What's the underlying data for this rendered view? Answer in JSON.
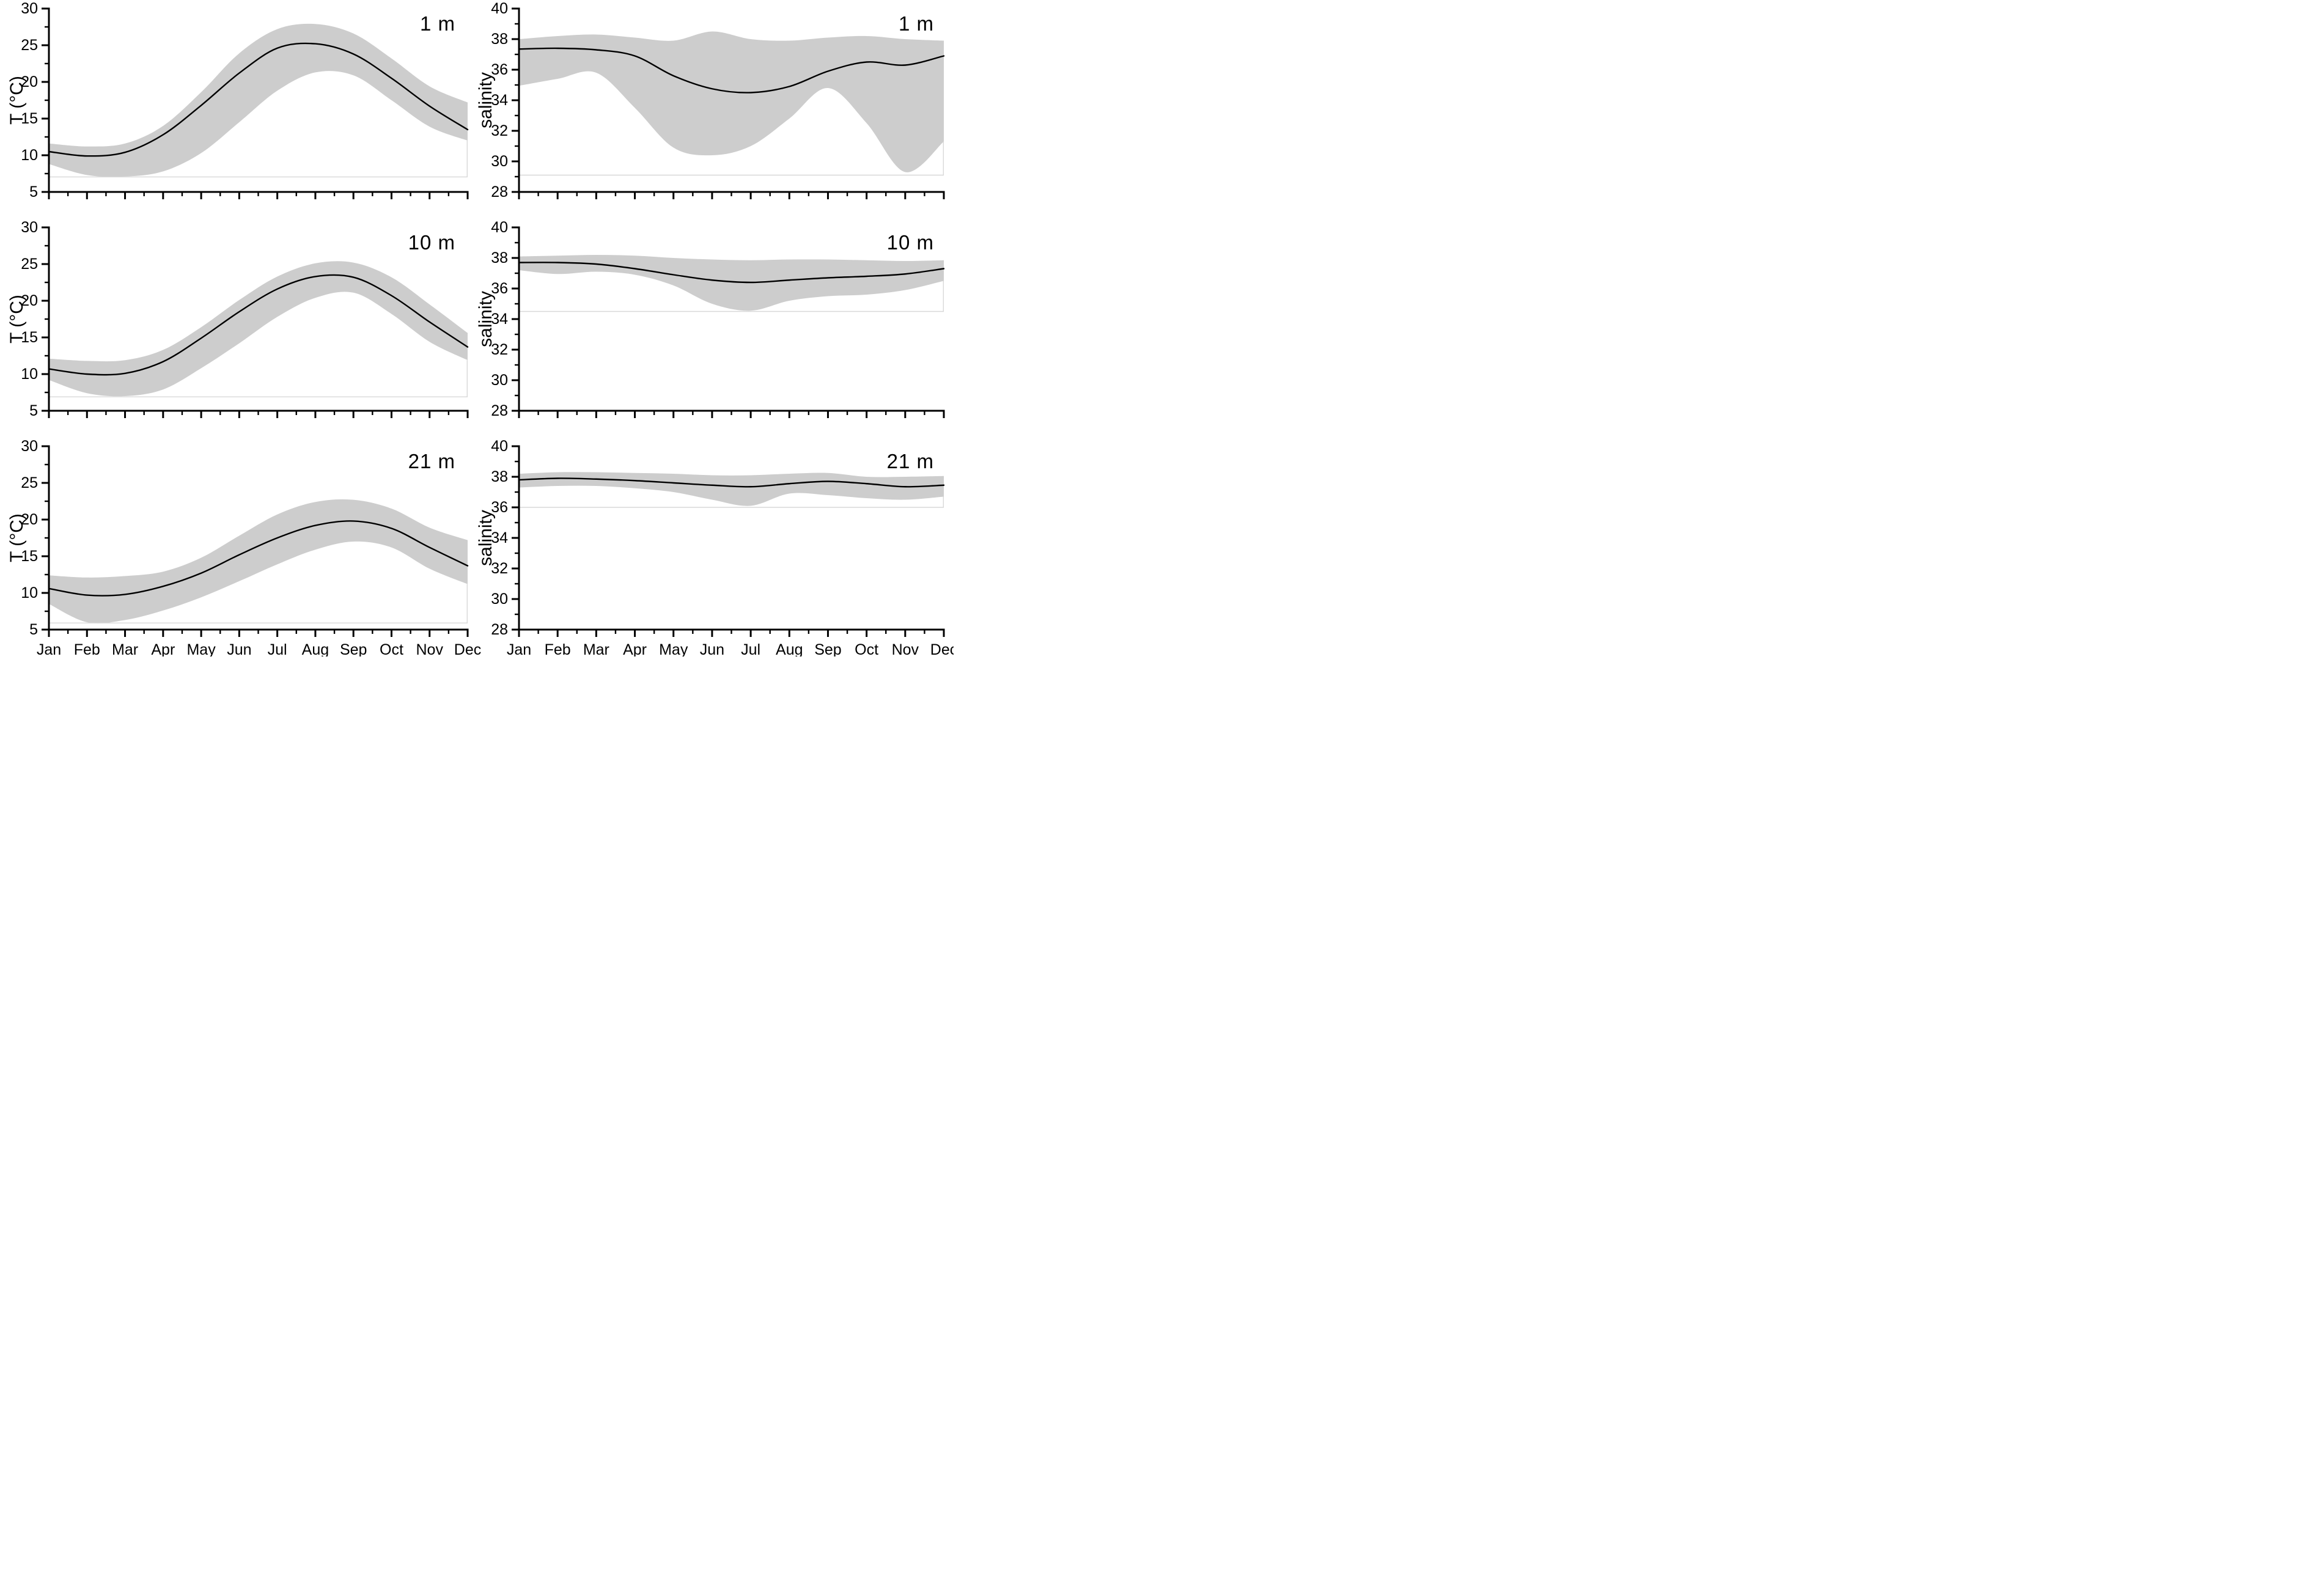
{
  "figure": {
    "background_color": "#ffffff",
    "band_color": "#cdcdcd",
    "mean_line_color": "#000000",
    "baseline_color": "#d8d8d8",
    "axis_color": "#000000",
    "months": [
      "Jan",
      "Feb",
      "Mar",
      "Apr",
      "May",
      "Jun",
      "Jul",
      "Aug",
      "Sep",
      "Oct",
      "Nov",
      "Dec"
    ]
  },
  "chart_data": [
    {
      "type": "area",
      "id": "temperature-1m",
      "annotation": "1 m",
      "ylabel": "T (°C)",
      "xlabel": "",
      "ylim": [
        5,
        30
      ],
      "yticks": [
        5,
        10,
        15,
        20,
        25,
        30
      ],
      "x_categories": [
        "Jan",
        "Feb",
        "Mar",
        "Apr",
        "May",
        "Jun",
        "Jul",
        "Aug",
        "Sep",
        "Oct",
        "Nov",
        "Dec"
      ],
      "grid": false,
      "legend_position": "none",
      "series": [
        {
          "name": "mean",
          "values": [
            10.5,
            9.9,
            10.4,
            12.8,
            16.8,
            21.2,
            24.6,
            25.2,
            23.8,
            20.5,
            16.7,
            13.5
          ]
        },
        {
          "name": "upper",
          "values": [
            11.6,
            11.2,
            11.6,
            14.0,
            18.6,
            23.9,
            27.2,
            27.9,
            26.6,
            23.2,
            19.4,
            17.2
          ]
        },
        {
          "name": "lower",
          "values": [
            8.8,
            7.3,
            7.1,
            7.8,
            10.3,
            14.5,
            18.8,
            21.3,
            20.9,
            17.5,
            13.9,
            12.0
          ]
        }
      ],
      "envelope_min_line": 7.05,
      "show_x_labels": false
    },
    {
      "type": "area",
      "id": "salinity-1m",
      "annotation": "1 m",
      "ylabel": "salinity",
      "xlabel": "",
      "ylim": [
        28,
        40
      ],
      "yticks": [
        28,
        30,
        32,
        34,
        36,
        38,
        40
      ],
      "x_categories": [
        "Jan",
        "Feb",
        "Mar",
        "Apr",
        "May",
        "Jun",
        "Jul",
        "Aug",
        "Sep",
        "Oct",
        "Nov",
        "Dec"
      ],
      "grid": false,
      "legend_position": "none",
      "series": [
        {
          "name": "mean",
          "values": [
            37.35,
            37.4,
            37.3,
            36.9,
            35.6,
            34.75,
            34.5,
            34.9,
            35.9,
            36.5,
            36.3,
            36.9
          ]
        },
        {
          "name": "upper",
          "values": [
            38.0,
            38.2,
            38.3,
            38.1,
            37.9,
            38.5,
            38.0,
            37.9,
            38.1,
            38.2,
            38.0,
            37.9
          ]
        },
        {
          "name": "lower",
          "values": [
            34.95,
            35.4,
            35.8,
            33.5,
            30.9,
            30.4,
            31.0,
            32.8,
            34.8,
            32.5,
            29.3,
            31.3
          ]
        }
      ],
      "envelope_min_line": 29.1,
      "show_x_labels": false
    },
    {
      "type": "area",
      "id": "temperature-10m",
      "annotation": "10 m",
      "ylabel": "T (°C)",
      "xlabel": "",
      "ylim": [
        5,
        30
      ],
      "yticks": [
        5,
        10,
        15,
        20,
        25,
        30
      ],
      "x_categories": [
        "Jan",
        "Feb",
        "Mar",
        "Apr",
        "May",
        "Jun",
        "Jul",
        "Aug",
        "Sep",
        "Oct",
        "Nov",
        "Dec"
      ],
      "grid": false,
      "legend_position": "none",
      "series": [
        {
          "name": "mean",
          "values": [
            10.7,
            10.0,
            10.1,
            11.7,
            14.9,
            18.5,
            21.6,
            23.3,
            23.2,
            20.7,
            17.1,
            13.7
          ]
        },
        {
          "name": "upper",
          "values": [
            12.1,
            11.8,
            11.9,
            13.3,
            16.4,
            20.1,
            23.3,
            25.1,
            25.2,
            23.2,
            19.5,
            15.6
          ]
        },
        {
          "name": "lower",
          "values": [
            9.2,
            7.4,
            7.0,
            7.9,
            10.8,
            14.2,
            17.8,
            20.4,
            21.1,
            18.2,
            14.4,
            11.9
          ]
        }
      ],
      "envelope_min_line": 6.9,
      "show_x_labels": false
    },
    {
      "type": "area",
      "id": "salinity-10m",
      "annotation": "10 m",
      "ylabel": "salinity",
      "xlabel": "",
      "ylim": [
        28,
        40
      ],
      "yticks": [
        28,
        30,
        32,
        34,
        36,
        38,
        40
      ],
      "x_categories": [
        "Jan",
        "Feb",
        "Mar",
        "Apr",
        "May",
        "Jun",
        "Jul",
        "Aug",
        "Sep",
        "Oct",
        "Nov",
        "Dec"
      ],
      "grid": false,
      "legend_position": "none",
      "series": [
        {
          "name": "mean",
          "values": [
            37.7,
            37.7,
            37.6,
            37.3,
            36.9,
            36.55,
            36.4,
            36.55,
            36.7,
            36.8,
            36.95,
            37.3
          ]
        },
        {
          "name": "upper",
          "values": [
            38.1,
            38.15,
            38.2,
            38.15,
            38.0,
            37.9,
            37.85,
            37.9,
            37.9,
            37.85,
            37.8,
            37.85
          ]
        },
        {
          "name": "lower",
          "values": [
            37.2,
            36.95,
            37.1,
            36.9,
            36.2,
            35.0,
            34.55,
            35.2,
            35.5,
            35.6,
            35.9,
            36.5
          ]
        }
      ],
      "envelope_min_line": 34.5,
      "show_x_labels": false
    },
    {
      "type": "area",
      "id": "temperature-21m",
      "annotation": "21 m",
      "ylabel": "T (°C)",
      "xlabel": "",
      "ylim": [
        5,
        30
      ],
      "yticks": [
        5,
        10,
        15,
        20,
        25,
        30
      ],
      "x_categories": [
        "Jan",
        "Feb",
        "Mar",
        "Apr",
        "May",
        "Jun",
        "Jul",
        "Aug",
        "Sep",
        "Oct",
        "Nov",
        "Dec"
      ],
      "grid": false,
      "legend_position": "none",
      "series": [
        {
          "name": "mean",
          "values": [
            10.6,
            9.7,
            9.8,
            10.9,
            12.7,
            15.2,
            17.5,
            19.2,
            19.8,
            18.8,
            16.2,
            13.7
          ]
        },
        {
          "name": "upper",
          "values": [
            12.4,
            12.1,
            12.3,
            12.9,
            14.8,
            17.8,
            20.7,
            22.4,
            22.7,
            21.5,
            18.9,
            17.2
          ]
        },
        {
          "name": "lower",
          "values": [
            8.5,
            6.0,
            6.3,
            7.6,
            9.4,
            11.6,
            13.9,
            15.9,
            17.0,
            16.2,
            13.3,
            11.2
          ]
        }
      ],
      "envelope_min_line": 5.9,
      "show_x_labels": true
    },
    {
      "type": "area",
      "id": "salinity-21m",
      "annotation": "21 m",
      "ylabel": "salinity",
      "xlabel": "",
      "ylim": [
        28,
        40
      ],
      "yticks": [
        28,
        30,
        32,
        34,
        36,
        38,
        40
      ],
      "x_categories": [
        "Jan",
        "Feb",
        "Mar",
        "Apr",
        "May",
        "Jun",
        "Jul",
        "Aug",
        "Sep",
        "Oct",
        "Nov",
        "Dec"
      ],
      "grid": false,
      "legend_position": "none",
      "series": [
        {
          "name": "mean",
          "values": [
            37.8,
            37.9,
            37.85,
            37.75,
            37.6,
            37.45,
            37.35,
            37.55,
            37.7,
            37.55,
            37.35,
            37.45
          ]
        },
        {
          "name": "upper",
          "values": [
            38.2,
            38.3,
            38.3,
            38.25,
            38.2,
            38.1,
            38.1,
            38.2,
            38.25,
            38.0,
            38.0,
            38.05
          ]
        },
        {
          "name": "lower",
          "values": [
            37.3,
            37.4,
            37.4,
            37.25,
            37.0,
            36.5,
            36.1,
            36.9,
            36.8,
            36.6,
            36.5,
            36.7
          ]
        }
      ],
      "envelope_min_line": 36.0,
      "show_x_labels": true
    }
  ]
}
